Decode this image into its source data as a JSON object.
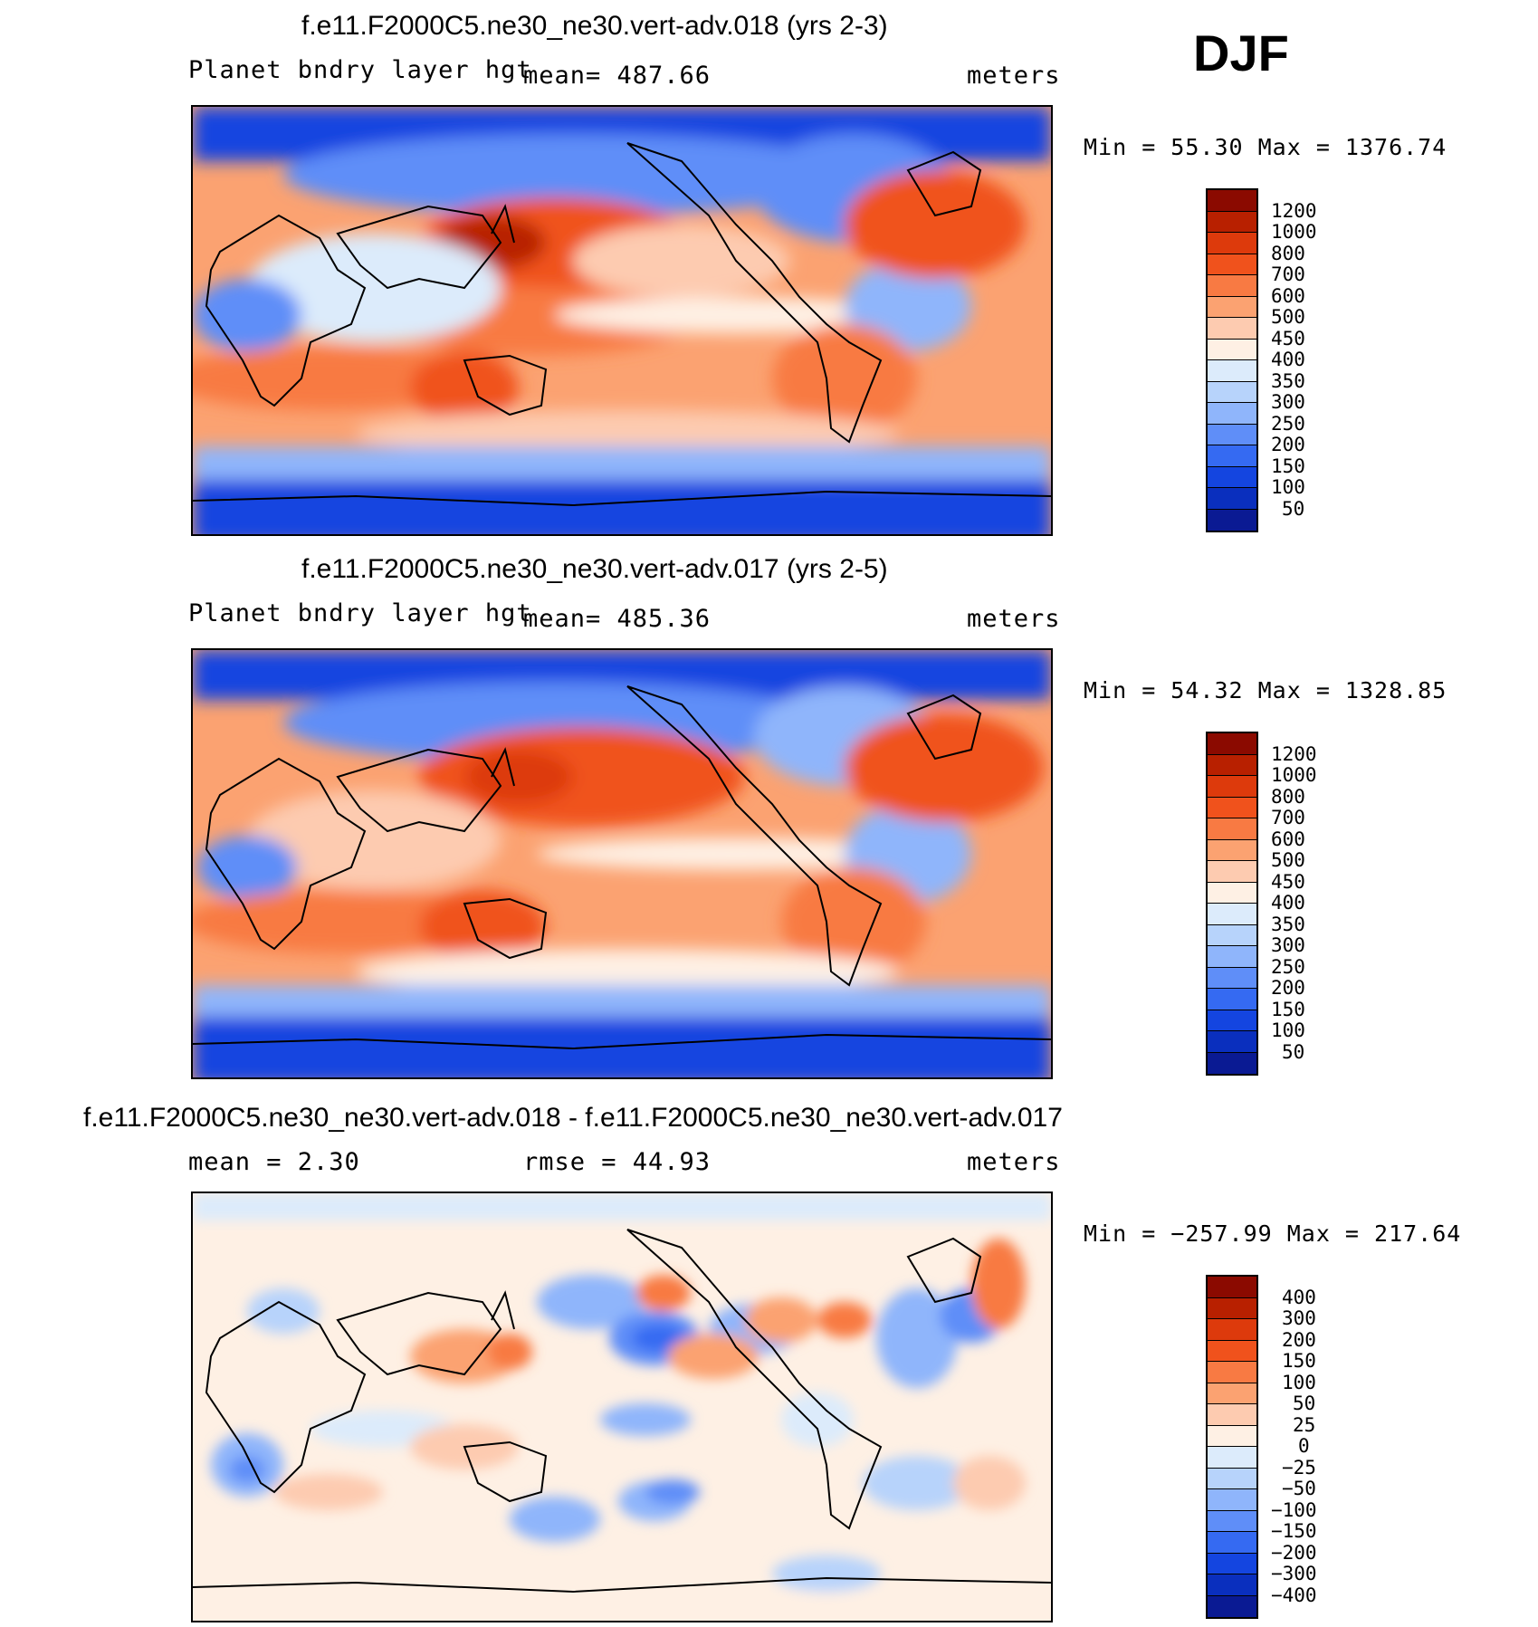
{
  "season": "DJF",
  "panels": [
    {
      "id": "p1",
      "title": "f.e11.F2000C5.ne30_ne30.vert-adv.018 (yrs 2-3)",
      "left_label": "Planet bndry layer hgt",
      "center_label": "mean= 487.66",
      "units": "meters",
      "minmax": "Min =   55.30 Max = 1376.74",
      "levels": [
        "1200",
        "1000",
        "800",
        "700",
        "600",
        "500",
        "450",
        "400",
        "350",
        "300",
        "250",
        "200",
        "150",
        "100",
        "50"
      ],
      "colors": [
        "#8b0a00",
        "#b82000",
        "#dd3a0c",
        "#f0521c",
        "#f87a43",
        "#fba271",
        "#fdcbb0",
        "#fef0e4",
        "#dcebfb",
        "#b7d3fb",
        "#8fb5fb",
        "#5f8ef8",
        "#356af2",
        "#1445e0",
        "#0a2fbe",
        "#0a1a93"
      ]
    },
    {
      "id": "p2",
      "title": "f.e11.F2000C5.ne30_ne30.vert-adv.017 (yrs 2-5)",
      "left_label": "Planet bndry layer hgt",
      "center_label": "mean= 485.36",
      "units": "meters",
      "minmax": "Min =   54.32 Max = 1328.85",
      "levels": [
        "1200",
        "1000",
        "800",
        "700",
        "600",
        "500",
        "450",
        "400",
        "350",
        "300",
        "250",
        "200",
        "150",
        "100",
        "50"
      ],
      "colors": [
        "#8b0a00",
        "#b82000",
        "#dd3a0c",
        "#f0521c",
        "#f87a43",
        "#fba271",
        "#fdcbb0",
        "#fef0e4",
        "#dcebfb",
        "#b7d3fb",
        "#8fb5fb",
        "#5f8ef8",
        "#356af2",
        "#1445e0",
        "#0a2fbe",
        "#0a1a93"
      ]
    },
    {
      "id": "p3",
      "title": "f.e11.F2000C5.ne30_ne30.vert-adv.018 - f.e11.F2000C5.ne30_ne30.vert-adv.017",
      "left_label": "mean =    2.30",
      "center_label": "rmse =   44.93",
      "units": "meters",
      "minmax": "Min = −257.99 Max = 217.64",
      "levels": [
        "400",
        "300",
        "200",
        "150",
        "100",
        "50",
        "25",
        "0",
        "−25",
        "−50",
        "−100",
        "−150",
        "−200",
        "−300",
        "−400"
      ],
      "colors": [
        "#8b0a00",
        "#b82000",
        "#dd3a0c",
        "#f0521c",
        "#f87a43",
        "#fba271",
        "#fdcbb0",
        "#fef0e4",
        "#dcebfb",
        "#b7d3fb",
        "#8fb5fb",
        "#5f8ef8",
        "#356af2",
        "#1445e0",
        "#0a2fbe",
        "#0a1a93"
      ]
    }
  ],
  "chart_data": [
    {
      "type": "heatmap",
      "title": "f.e11.F2000C5.ne30_ne30.vert-adv.018 (yrs 2-3)",
      "variable": "Planet bndry layer hgt",
      "units": "meters",
      "season": "DJF",
      "mean": 487.66,
      "min": 55.3,
      "max": 1376.74,
      "contour_levels": [
        50,
        100,
        150,
        200,
        250,
        300,
        350,
        400,
        450,
        500,
        600,
        700,
        800,
        1000,
        1200
      ]
    },
    {
      "type": "heatmap",
      "title": "f.e11.F2000C5.ne30_ne30.vert-adv.017 (yrs 2-5)",
      "variable": "Planet bndry layer hgt",
      "units": "meters",
      "season": "DJF",
      "mean": 485.36,
      "min": 54.32,
      "max": 1328.85,
      "contour_levels": [
        50,
        100,
        150,
        200,
        250,
        300,
        350,
        400,
        450,
        500,
        600,
        700,
        800,
        1000,
        1200
      ]
    },
    {
      "type": "heatmap",
      "title": "f.e11.F2000C5.ne30_ne30.vert-adv.018 - f.e11.F2000C5.ne30_ne30.vert-adv.017",
      "units": "meters",
      "season": "DJF",
      "mean": 2.3,
      "rmse": 44.93,
      "min": -257.99,
      "max": 217.64,
      "contour_levels": [
        -400,
        -300,
        -200,
        -150,
        -100,
        -50,
        -25,
        0,
        25,
        50,
        100,
        150,
        200,
        300,
        400
      ]
    }
  ]
}
